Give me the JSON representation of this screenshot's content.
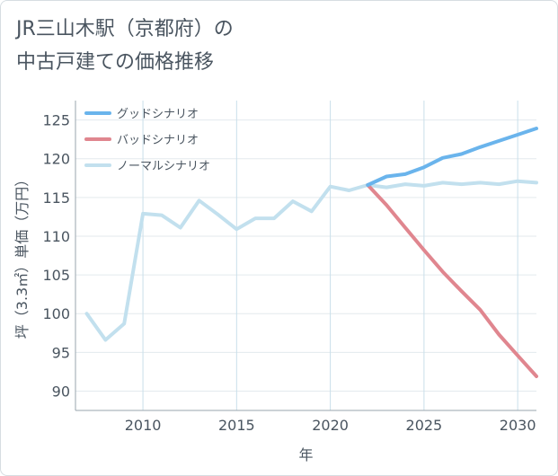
{
  "title": {
    "line1": "JR三山木駅（京都府）の",
    "line2": "中古戸建ての価格推移"
  },
  "chart_data": {
    "type": "line",
    "xlabel": "年",
    "ylabel": "坪（3.3㎡）単価（万円）",
    "xlim": [
      2006.4,
      2031
    ],
    "ylim": [
      87.5,
      127.5
    ],
    "xticks": [
      2010,
      2015,
      2020,
      2025,
      2030
    ],
    "yticks": [
      90,
      95,
      100,
      105,
      110,
      115,
      120,
      125
    ],
    "legend_position": "top-left",
    "series": [
      {
        "name": "グッドシナリオ",
        "color": "#6ab4ec",
        "x": [
          2022,
          2023,
          2024,
          2025,
          2026,
          2027,
          2028,
          2029,
          2030,
          2031
        ],
        "y": [
          116.6,
          117.7,
          118.0,
          118.9,
          120.1,
          120.6,
          121.5,
          122.3,
          123.1,
          123.9
        ]
      },
      {
        "name": "バッドシナリオ",
        "color": "#e0868f",
        "x": [
          2022,
          2023,
          2024,
          2025,
          2026,
          2027,
          2028,
          2029,
          2030,
          2031
        ],
        "y": [
          116.6,
          114.0,
          111.1,
          108.2,
          105.4,
          102.9,
          100.5,
          97.3,
          94.6,
          91.9
        ]
      },
      {
        "name": "ノーマルシナリオ",
        "color": "#c2e0ee",
        "x": [
          2007,
          2008,
          2009,
          2010,
          2011,
          2012,
          2013,
          2014,
          2015,
          2016,
          2017,
          2018,
          2019,
          2020,
          2021,
          2022,
          2023,
          2024,
          2025,
          2026,
          2027,
          2028,
          2029,
          2030,
          2031
        ],
        "y": [
          100.0,
          96.6,
          98.7,
          112.9,
          112.7,
          111.1,
          114.6,
          112.8,
          110.9,
          112.3,
          112.3,
          114.5,
          113.2,
          116.4,
          115.9,
          116.6,
          116.3,
          116.7,
          116.5,
          116.9,
          116.7,
          116.9,
          116.7,
          117.1,
          116.9
        ]
      }
    ]
  }
}
